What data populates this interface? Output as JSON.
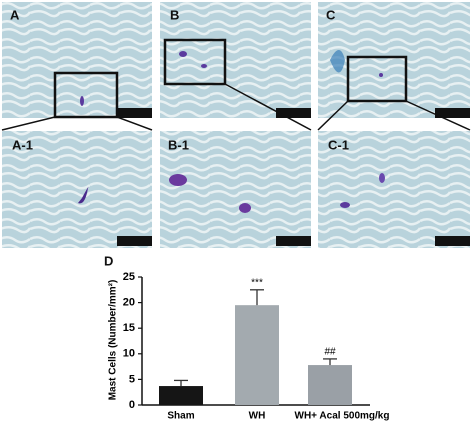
{
  "panels": [
    "A",
    "B",
    "C",
    "A-1",
    "B-1",
    "C-1"
  ],
  "chart_data": {
    "type": "bar",
    "panel_label": "D",
    "ylabel": "Mast Cells (Number/mm²)",
    "categories": [
      "Sham",
      "WH",
      "WH+ Acal 500mg/kg"
    ],
    "values": [
      3.7,
      19.5,
      7.8
    ],
    "errors": [
      1.1,
      3.0,
      1.2
    ],
    "colors": [
      "#151515",
      "#a3aaaf",
      "#9aa0a6"
    ],
    "annotations": [
      "",
      "***",
      "##"
    ],
    "ylim": [
      0,
      25
    ],
    "yticks": [
      0,
      5,
      10,
      15,
      20,
      25
    ]
  }
}
